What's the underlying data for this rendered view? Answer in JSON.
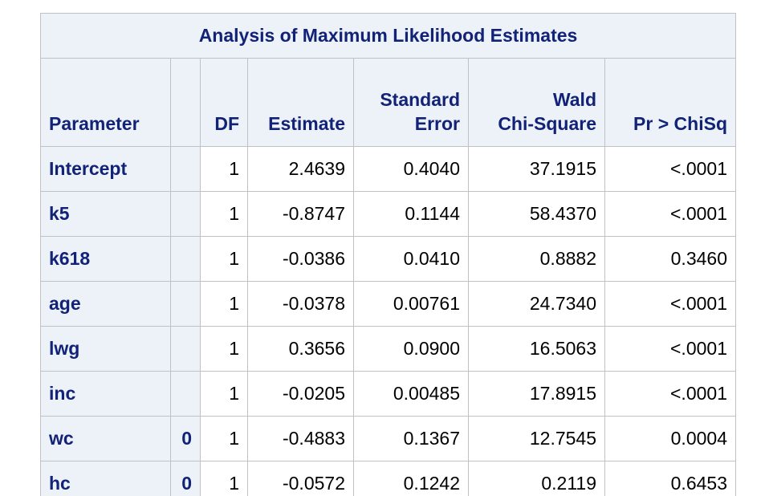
{
  "table": {
    "title": "Analysis of Maximum Likelihood Estimates",
    "headers": {
      "parameter": "Parameter",
      "level": "",
      "df": "DF",
      "estimate": "Estimate",
      "stderr_line1": "Standard",
      "stderr_line2": "Error",
      "wald_line1": "Wald",
      "wald_line2": "Chi-Square",
      "pval": "Pr > ChiSq"
    },
    "rows": [
      {
        "param": "Intercept",
        "level": "",
        "df": "1",
        "estimate": "2.4639",
        "stderr": "0.4040",
        "wald": "37.1915",
        "p": "<.0001"
      },
      {
        "param": "k5",
        "level": "",
        "df": "1",
        "estimate": "-0.8747",
        "stderr": "0.1144",
        "wald": "58.4370",
        "p": "<.0001"
      },
      {
        "param": "k618",
        "level": "",
        "df": "1",
        "estimate": "-0.0386",
        "stderr": "0.0410",
        "wald": "0.8882",
        "p": "0.3460"
      },
      {
        "param": "age",
        "level": "",
        "df": "1",
        "estimate": "-0.0378",
        "stderr": "0.00761",
        "wald": "24.7340",
        "p": "<.0001"
      },
      {
        "param": "lwg",
        "level": "",
        "df": "1",
        "estimate": "0.3656",
        "stderr": "0.0900",
        "wald": "16.5063",
        "p": "<.0001"
      },
      {
        "param": "inc",
        "level": "",
        "df": "1",
        "estimate": "-0.0205",
        "stderr": "0.00485",
        "wald": "17.8915",
        "p": "<.0001"
      },
      {
        "param": "wc",
        "level": "0",
        "df": "1",
        "estimate": "-0.4883",
        "stderr": "0.1367",
        "wald": "12.7545",
        "p": "0.0004"
      },
      {
        "param": "hc",
        "level": "0",
        "df": "1",
        "estimate": "-0.0572",
        "stderr": "0.1242",
        "wald": "0.2119",
        "p": "0.6453"
      }
    ]
  }
}
